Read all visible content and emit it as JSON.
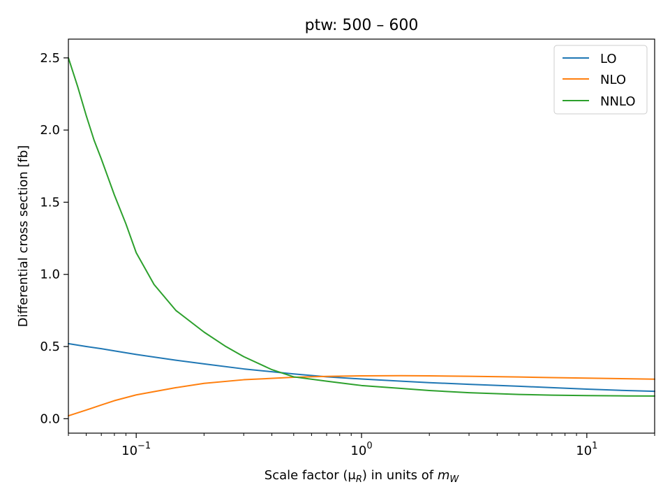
{
  "chart_data": {
    "type": "line",
    "title": "ptw: 500 – 600",
    "xlabel": "Scale factor (μ",
    "xlabel_sub": "R",
    "xlabel_mid": ") in units of ",
    "xlabel_var": "m",
    "xlabel_var_sub": "W",
    "ylabel": "Differential cross section [fb]",
    "xscale": "log",
    "xlim": [
      0.05,
      20
    ],
    "ylim": [
      -0.1,
      2.63
    ],
    "yticks": [
      0.0,
      0.5,
      1.0,
      1.5,
      2.0,
      2.5
    ],
    "ytick_labels": [
      "0.0",
      "0.5",
      "1.0",
      "1.5",
      "2.0",
      "2.5"
    ],
    "xticks": [
      {
        "base": "10",
        "exp": "−1",
        "value": 0.1
      },
      {
        "base": "10",
        "exp": "0",
        "value": 1
      },
      {
        "base": "10",
        "exp": "1",
        "value": 10
      }
    ],
    "grid": false,
    "legend_position": "top-right",
    "series": [
      {
        "name": "LO",
        "color": "#1f77b4",
        "x": [
          0.05,
          0.06,
          0.07,
          0.08,
          0.1,
          0.15,
          0.2,
          0.3,
          0.5,
          0.7,
          1,
          1.5,
          2,
          3,
          5,
          7,
          10,
          15,
          20
        ],
        "y": [
          0.52,
          0.5,
          0.485,
          0.47,
          0.445,
          0.405,
          0.38,
          0.345,
          0.31,
          0.29,
          0.275,
          0.26,
          0.25,
          0.238,
          0.225,
          0.215,
          0.205,
          0.195,
          0.19
        ]
      },
      {
        "name": "NLO",
        "color": "#ff7f0e",
        "x": [
          0.05,
          0.06,
          0.07,
          0.08,
          0.1,
          0.15,
          0.2,
          0.3,
          0.5,
          0.7,
          1,
          1.5,
          2,
          3,
          5,
          7,
          10,
          15,
          20
        ],
        "y": [
          0.02,
          0.06,
          0.095,
          0.125,
          0.165,
          0.215,
          0.245,
          0.27,
          0.287,
          0.293,
          0.297,
          0.298,
          0.297,
          0.294,
          0.289,
          0.285,
          0.281,
          0.277,
          0.274
        ]
      },
      {
        "name": "NNLO",
        "color": "#2ca02c",
        "x": [
          0.05,
          0.055,
          0.06,
          0.065,
          0.07,
          0.08,
          0.09,
          0.1,
          0.12,
          0.15,
          0.2,
          0.25,
          0.3,
          0.4,
          0.5,
          0.7,
          1,
          1.5,
          2,
          3,
          5,
          7,
          10,
          15,
          20
        ],
        "y": [
          2.5,
          2.3,
          2.1,
          1.93,
          1.8,
          1.55,
          1.35,
          1.15,
          0.93,
          0.75,
          0.6,
          0.5,
          0.43,
          0.34,
          0.29,
          0.26,
          0.23,
          0.21,
          0.195,
          0.18,
          0.168,
          0.163,
          0.16,
          0.158,
          0.157
        ]
      }
    ]
  }
}
